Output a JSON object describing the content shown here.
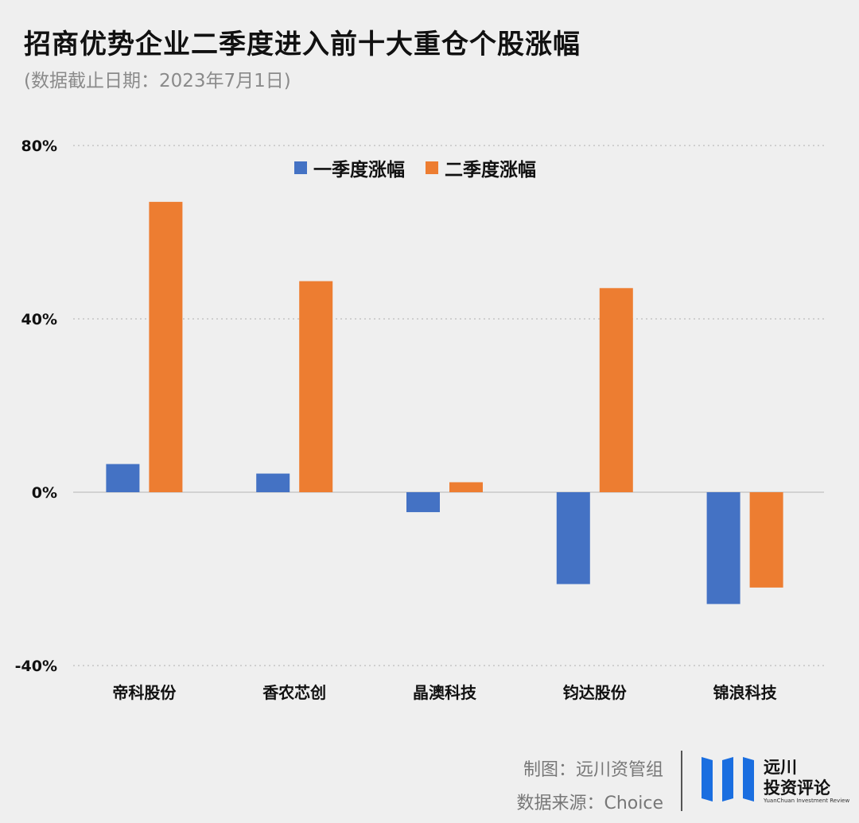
{
  "header": {
    "title": "招商优势企业二季度进入前十大重仓个股涨幅",
    "subtitle": "(数据截止日期：2023年7月1日)"
  },
  "footer": {
    "credit": "制图：远川资管组",
    "source": "数据来源：Choice"
  },
  "logo": {
    "name": "远川",
    "tagline": "投资评论",
    "english": "YuanChuan Investment Review"
  },
  "colors": {
    "q1": "#4472c4",
    "q2": "#ed7d31",
    "brand": "#1a6ee0"
  },
  "chart_data": {
    "type": "bar",
    "title": "招商优势企业二季度进入前十大重仓个股涨幅",
    "categories": [
      "帝科股份",
      "香农芯创",
      "晶澳科技",
      "钧达股份",
      "锦浪科技"
    ],
    "series": [
      {
        "name": "一季度涨幅",
        "values": [
          6.5,
          4.3,
          -4.6,
          -21.2,
          -25.8
        ]
      },
      {
        "name": "二季度涨幅",
        "values": [
          67.0,
          48.7,
          2.3,
          47.1,
          -22.0
        ]
      }
    ],
    "ylim": [
      -40,
      80
    ],
    "yticks": [
      "80%",
      "40%",
      "0%",
      "-40%"
    ],
    "ytick_values": [
      80,
      40,
      0,
      -40
    ],
    "grid": true,
    "legend_position": "top"
  }
}
